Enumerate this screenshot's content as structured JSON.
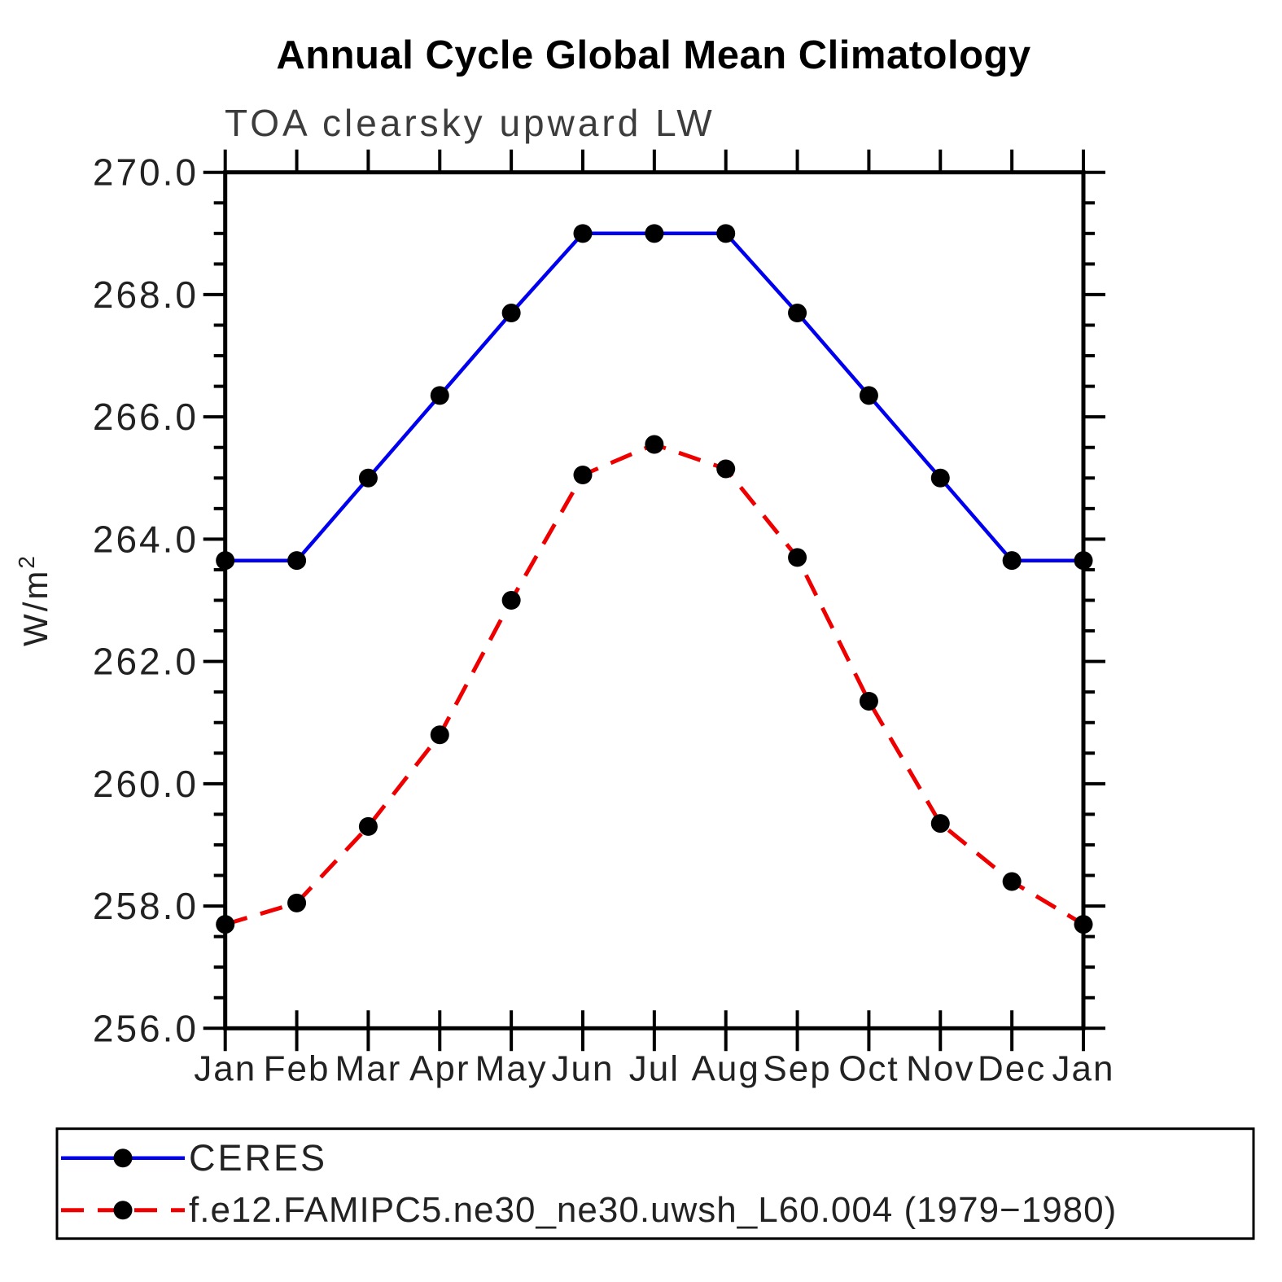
{
  "title": "Annual Cycle Global Mean Climatology",
  "subtitle": "TOA clearsky upward LW",
  "chart_data": {
    "type": "line",
    "title": "Annual Cycle Global Mean Climatology",
    "subtitle": "TOA clearsky upward LW",
    "xlabel": "",
    "ylabel": "W/m²",
    "ylabel_base": "W/m",
    "ylabel_exp": "2",
    "categories": [
      "Jan",
      "Feb",
      "Mar",
      "Apr",
      "May",
      "Jun",
      "Jul",
      "Aug",
      "Sep",
      "Oct",
      "Nov",
      "Dec",
      "Jan"
    ],
    "series": [
      {
        "name": "CERES",
        "color": "#0000ee",
        "line_style": "solid",
        "marker": "filled-circle",
        "marker_color": "#000000",
        "values": [
          263.65,
          263.65,
          265.0,
          266.35,
          267.7,
          269.0,
          269.0,
          269.0,
          267.7,
          266.35,
          265.0,
          263.65,
          263.65
        ]
      },
      {
        "name": "f.e12.FAMIPC5.ne30_ne30.uwsh_L60.004 (1979−1980)",
        "color": "#ee0000",
        "line_style": "dashed",
        "marker": "filled-circle",
        "marker_color": "#000000",
        "values": [
          257.7,
          258.05,
          259.3,
          260.8,
          263.0,
          265.05,
          265.55,
          265.15,
          263.7,
          261.35,
          259.35,
          258.4,
          257.7
        ]
      }
    ],
    "ylim": [
      256.0,
      270.0
    ],
    "ytick_major_step": 2.0,
    "ytick_minor_step": 0.5,
    "ytick_labels": [
      "270.0",
      "268.0",
      "266.0",
      "264.0",
      "262.0",
      "260.0",
      "258.0",
      "256.0"
    ],
    "grid": false,
    "legend_position": "bottom"
  }
}
